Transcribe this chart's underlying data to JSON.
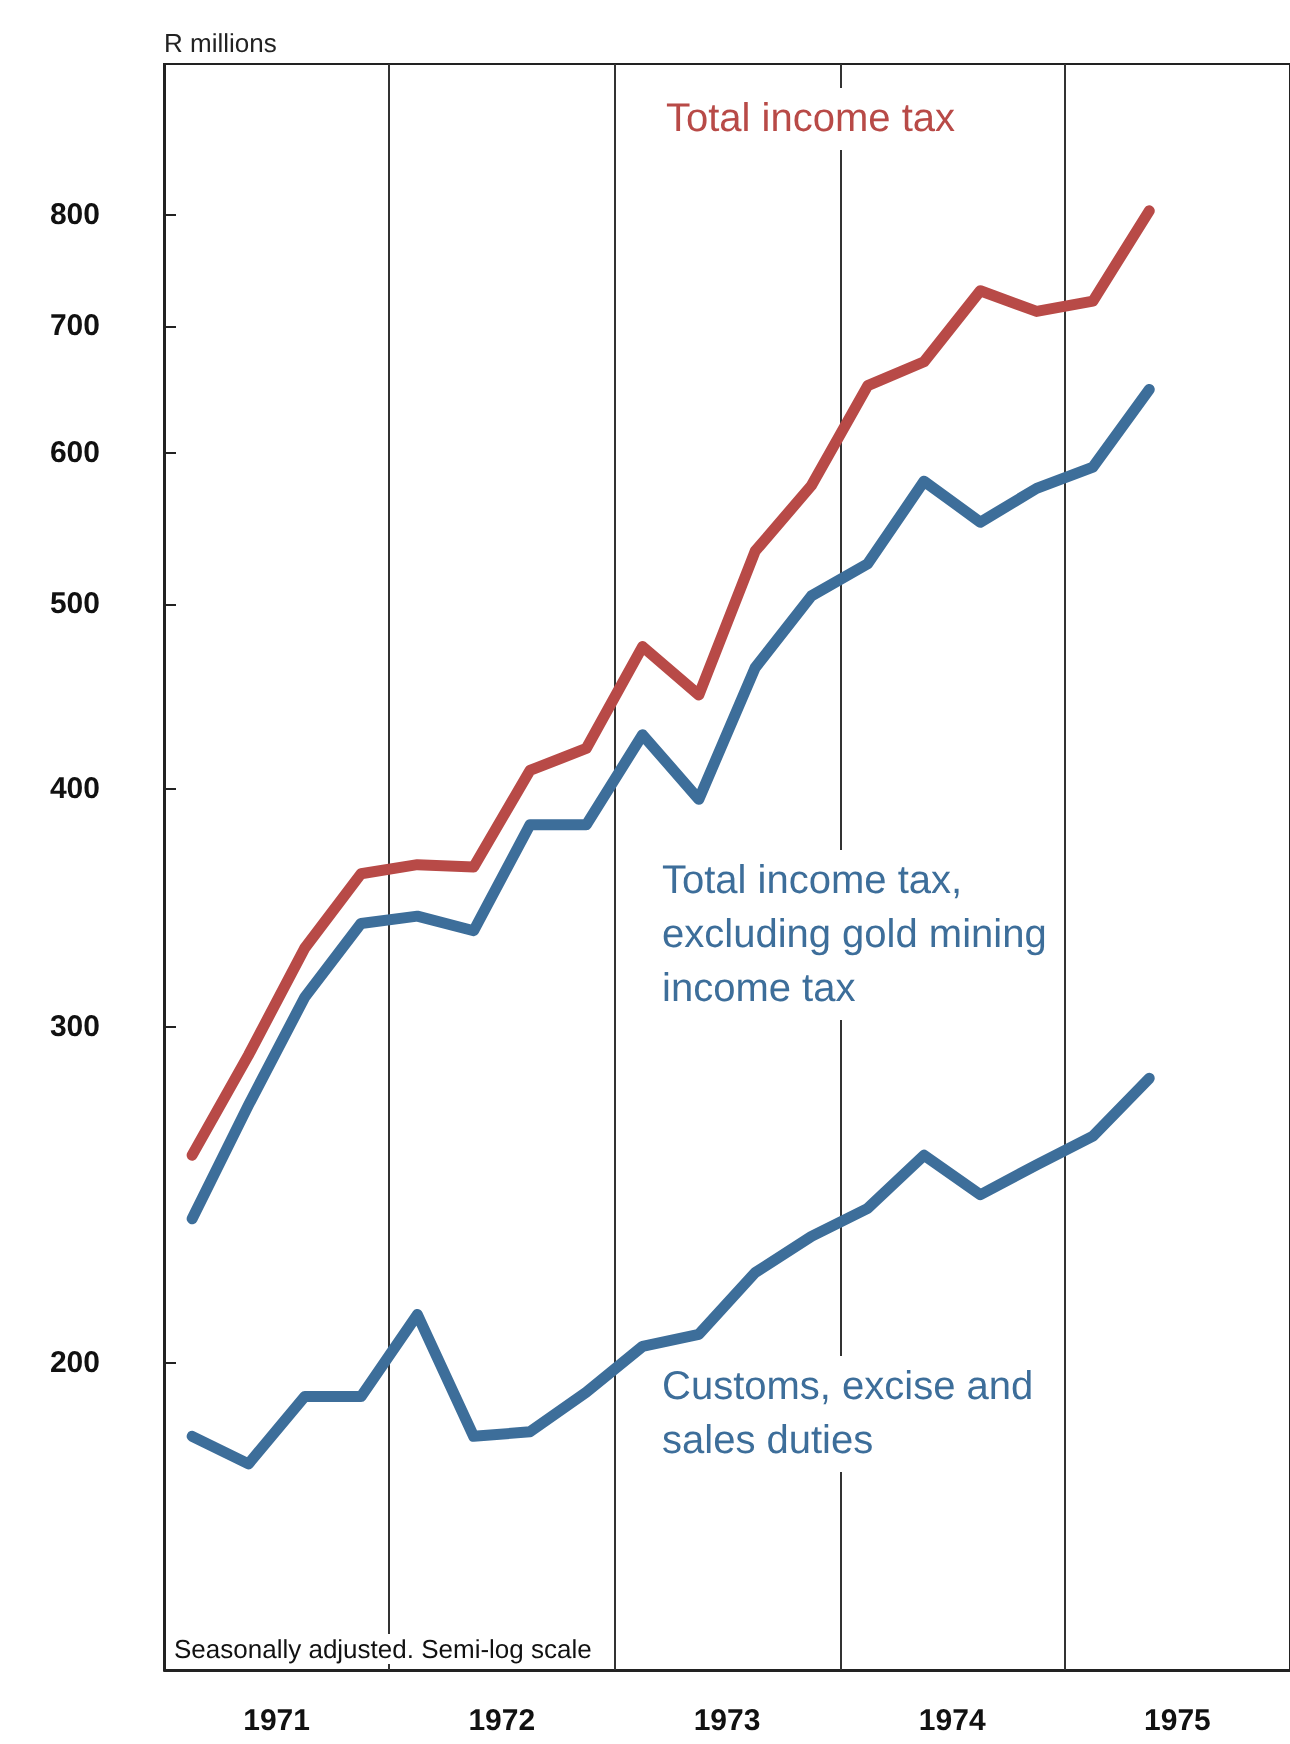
{
  "chart_data": {
    "type": "line",
    "ylabel": "R millions",
    "annotations": [
      "Seasonally adjusted. Semi-log scale"
    ],
    "x": [
      1971.125,
      1971.375,
      1971.625,
      1971.875,
      1972.125,
      1972.375,
      1972.625,
      1972.875,
      1973.125,
      1973.375,
      1973.625,
      1973.875,
      1974.125,
      1974.375,
      1974.625,
      1974.875,
      1975.125,
      1975.375
    ],
    "series": [
      {
        "name": "Total income tax",
        "color": "#b84a47",
        "values": [
          257,
          290,
          330,
          361,
          365,
          364,
          409,
          420,
          475,
          448,
          533,
          577,
          651,
          670,
          730,
          712,
          721,
          804
        ]
      },
      {
        "name": "Total income tax, excluding gold mining income tax",
        "color": "#3d6e9a",
        "values": [
          238,
          273,
          311,
          340,
          343,
          337,
          383,
          383,
          427,
          395,
          463,
          505,
          525,
          580,
          552,
          575,
          590,
          648
        ]
      },
      {
        "name": "Customs, excise and sales duties",
        "color": "#3d6e9a",
        "values": [
          183,
          177,
          192,
          192,
          212,
          183,
          184,
          193,
          204,
          207,
          223,
          233,
          241,
          257,
          245,
          254,
          263,
          282
        ]
      }
    ],
    "log": "y",
    "xlim": [
      1971,
      1976
    ],
    "xticks": [
      {
        "value": 1971.5,
        "label": "1971"
      },
      {
        "value": 1972.5,
        "label": "1972"
      },
      {
        "value": 1973.5,
        "label": "1973"
      },
      {
        "value": 1974.5,
        "label": "1974"
      },
      {
        "value": 1975.5,
        "label": "1975"
      },
      {
        "value": 1972,
        "label": null
      },
      {
        "value": 1973,
        "label": null
      },
      {
        "value": 1974,
        "label": null
      },
      {
        "value": 1975,
        "label": null
      }
    ],
    "ylim": [
      138,
      960
    ],
    "yticks": [
      200,
      300,
      400,
      500,
      600,
      700,
      800
    ],
    "grid": "x",
    "legend": false,
    "marker": "none",
    "line_style": "solid"
  }
}
